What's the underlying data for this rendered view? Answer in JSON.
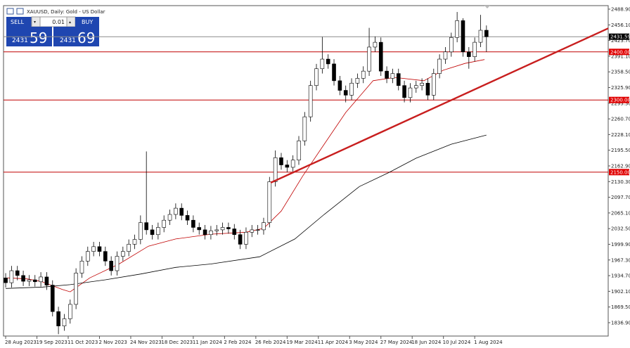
{
  "header": {
    "title": "XAUUSD, Daily:  Gold - US Dollar"
  },
  "trade_panel": {
    "sell": "SELL",
    "buy": "BUY",
    "volume": "0.01",
    "bid_big": "2431",
    "bid_small": "59",
    "ask_big": "2431",
    "ask_small": "69"
  },
  "chart_data": {
    "type": "candlestick",
    "xlim": [
      -1.1,
      308.3
    ],
    "ylim": [
      1809.1,
      2496.2
    ],
    "xticks": [
      {
        "value": 0,
        "label": "28 Aug 2023"
      },
      {
        "value": 16,
        "label": "19 Sep 2023"
      },
      {
        "value": 32,
        "label": "11 Oct 2023"
      },
      {
        "value": 48,
        "label": "2 Nov 2023"
      },
      {
        "value": 64,
        "label": "24 Nov 2023"
      },
      {
        "value": 80,
        "label": "18 Dec 2023"
      },
      {
        "value": 96,
        "label": "11 Jan 2024"
      },
      {
        "value": 112,
        "label": "2 Feb 2024"
      },
      {
        "value": 128,
        "label": "26 Feb 2024"
      },
      {
        "value": 144,
        "label": "19 Mar 2024"
      },
      {
        "value": 160,
        "label": "11 Apr 2024"
      },
      {
        "value": 176,
        "label": "3 May 2024"
      },
      {
        "value": 192,
        "label": "27 May 2024"
      },
      {
        "value": 208,
        "label": "18 Jun 2024"
      },
      {
        "value": 224,
        "label": "10 Jul 2024"
      },
      {
        "value": 240,
        "label": "1 Aug 2024"
      }
    ],
    "yticks": [
      {
        "value": 2488.9,
        "label": "2488.90"
      },
      {
        "value": 2456.1,
        "label": "2456.10"
      },
      {
        "value": 2423.7,
        "label": "2423.70"
      },
      {
        "value": 2391.1,
        "label": "2391.10"
      },
      {
        "value": 2358.5,
        "label": "2358.50"
      },
      {
        "value": 2325.9,
        "label": "2325.90"
      },
      {
        "value": 2293.3,
        "label": "2293.30"
      },
      {
        "value": 2260.7,
        "label": "2260.70"
      },
      {
        "value": 2228.1,
        "label": "2228.10"
      },
      {
        "value": 2195.5,
        "label": "2195.50"
      },
      {
        "value": 2162.9,
        "label": "2162.90"
      },
      {
        "value": 2130.3,
        "label": "2130.30"
      },
      {
        "value": 2097.7,
        "label": "2097.70"
      },
      {
        "value": 2065.1,
        "label": "2065.10"
      },
      {
        "value": 2032.5,
        "label": "2032.50"
      },
      {
        "value": 1999.9,
        "label": "1999.90"
      },
      {
        "value": 1967.3,
        "label": "1967.30"
      },
      {
        "value": 1934.7,
        "label": "1934.70"
      },
      {
        "value": 1902.1,
        "label": "1902.10"
      },
      {
        "value": 1869.5,
        "label": "1869.50"
      },
      {
        "value": 1836.9,
        "label": "1836.90"
      }
    ],
    "x": [
      0,
      3,
      6,
      9,
      12,
      15,
      18,
      21,
      24,
      27,
      30,
      33,
      36,
      39,
      42,
      45,
      48,
      51,
      54,
      57,
      60,
      63,
      66,
      69,
      72,
      75,
      78,
      81,
      84,
      87,
      90,
      93,
      96,
      99,
      102,
      105,
      108,
      111,
      114,
      117,
      120,
      123,
      126,
      129,
      132,
      135,
      138,
      141,
      144,
      147,
      150,
      153,
      156,
      159,
      162,
      165,
      168,
      171,
      174,
      177,
      180,
      183,
      186,
      189,
      192,
      195,
      198,
      201,
      204,
      207,
      210,
      213,
      216,
      219,
      222,
      225,
      228,
      231,
      234,
      237,
      240,
      243,
      246
    ],
    "open": [
      1930,
      1920,
      1945,
      1935,
      1923,
      1926,
      1922,
      1932,
      1915,
      1860,
      1830,
      1845,
      1875,
      1940,
      1965,
      1985,
      1995,
      1985,
      1965,
      1945,
      1975,
      1985,
      2000,
      2010,
      2045,
      2030,
      2020,
      2035,
      2050,
      2062,
      2075,
      2060,
      2050,
      2035,
      2030,
      2020,
      2028,
      2030,
      2035,
      2032,
      2020,
      2000,
      2025,
      2030,
      2030,
      2045,
      2130,
      2180,
      2165,
      2160,
      2175,
      2215,
      2265,
      2330,
      2365,
      2385,
      2375,
      2340,
      2320,
      2310,
      2335,
      2345,
      2360,
      2410,
      2420,
      2360,
      2345,
      2355,
      2330,
      2305,
      2325,
      2330,
      2335,
      2310,
      2355,
      2385,
      2400,
      2430,
      2465,
      2400,
      2390,
      2420,
      2445
    ],
    "high": [
      1940,
      1955,
      1955,
      1945,
      1936,
      1936,
      1942,
      1942,
      1925,
      1870,
      1855,
      1885,
      1950,
      1975,
      1995,
      2005,
      2005,
      1995,
      1975,
      1985,
      1995,
      2010,
      2020,
      2060,
      2193,
      2040,
      2045,
      2060,
      2072,
      2085,
      2085,
      2070,
      2060,
      2045,
      2040,
      2038,
      2040,
      2045,
      2045,
      2042,
      2030,
      2035,
      2040,
      2040,
      2055,
      2140,
      2195,
      2190,
      2175,
      2185,
      2225,
      2275,
      2340,
      2375,
      2431,
      2395,
      2385,
      2350,
      2330,
      2345,
      2355,
      2370,
      2450,
      2432,
      2430,
      2370,
      2365,
      2365,
      2340,
      2335,
      2340,
      2345,
      2345,
      2365,
      2395,
      2410,
      2440,
      2483,
      2470,
      2410,
      2430,
      2477,
      2455
    ],
    "low": [
      1910,
      1910,
      1925,
      1913,
      1913,
      1912,
      1912,
      1905,
      1850,
      1813,
      1820,
      1835,
      1865,
      1930,
      1955,
      1975,
      1975,
      1955,
      1935,
      1935,
      1965,
      1975,
      1990,
      2000,
      2020,
      2010,
      2010,
      2025,
      2040,
      2052,
      2050,
      2040,
      2025,
      2020,
      2010,
      2010,
      2018,
      2020,
      2022,
      2010,
      1990,
      1990,
      2015,
      2020,
      2020,
      2035,
      2120,
      2155,
      2150,
      2150,
      2165,
      2205,
      2255,
      2320,
      2355,
      2365,
      2330,
      2310,
      2295,
      2300,
      2325,
      2335,
      2350,
      2400,
      2350,
      2335,
      2335,
      2320,
      2295,
      2295,
      2315,
      2320,
      2300,
      2300,
      2345,
      2375,
      2390,
      2420,
      2390,
      2365,
      2380,
      2410,
      2400
    ],
    "close": [
      1920,
      1945,
      1935,
      1923,
      1926,
      1922,
      1932,
      1915,
      1860,
      1830,
      1845,
      1875,
      1940,
      1965,
      1985,
      1995,
      1985,
      1965,
      1945,
      1975,
      1985,
      2000,
      2010,
      2045,
      2030,
      2020,
      2035,
      2050,
      2062,
      2075,
      2060,
      2050,
      2035,
      2030,
      2020,
      2028,
      2030,
      2035,
      2032,
      2020,
      2000,
      2025,
      2030,
      2030,
      2045,
      2130,
      2180,
      2165,
      2160,
      2175,
      2215,
      2265,
      2330,
      2365,
      2385,
      2375,
      2340,
      2320,
      2310,
      2335,
      2345,
      2360,
      2410,
      2420,
      2360,
      2345,
      2355,
      2330,
      2305,
      2325,
      2330,
      2335,
      2310,
      2355,
      2385,
      2400,
      2430,
      2465,
      2400,
      2390,
      2420,
      2445,
      2431.59
    ],
    "up_color": "#ffffff",
    "down_color": "#000000",
    "moving_averages": [
      {
        "color": "#c00000",
        "x": [
          1,
          11,
          18,
          29,
          33,
          43,
          58,
          73,
          87,
          105,
          123,
          132,
          141,
          152,
          163,
          174,
          188,
          199,
          214,
          224,
          235,
          245
        ],
        "values": [
          1930,
          1928,
          1923,
          1906,
          1901,
          1930,
          1959,
          1996,
          2011,
          2021,
          2025,
          2033,
          2069,
          2142,
          2208,
          2274,
          2340,
          2347,
          2340,
          2362,
          2376,
          2384
        ]
      },
      {
        "color": "#000000",
        "x": [
          0,
          19,
          33,
          51,
          69,
          87,
          105,
          130,
          148,
          163,
          181,
          196,
          210,
          228,
          246
        ],
        "values": [
          1908,
          1911,
          1916,
          1926,
          1938,
          1952,
          1959,
          1974,
          2011,
          2062,
          2120,
          2149,
          2179,
          2208,
          2227
        ]
      }
    ],
    "levels": [
      {
        "value": 2431.59,
        "label": "2431.59",
        "color": "#8c8c8c",
        "tag_color": "#000000"
      },
      {
        "value": 2400,
        "label": "2400.00",
        "color": "#c00000",
        "tag_color": "#e00000"
      },
      {
        "value": 2300,
        "label": "2300.00",
        "color": "#c00000",
        "tag_color": "#e00000"
      },
      {
        "value": 2150,
        "label": "2150.00",
        "color": "#c00000",
        "tag_color": "#e00000"
      }
    ],
    "trendline": {
      "color": "#c81e1e",
      "x": [
        135.6,
        308.3
      ],
      "y": [
        2128,
        2449
      ]
    }
  }
}
